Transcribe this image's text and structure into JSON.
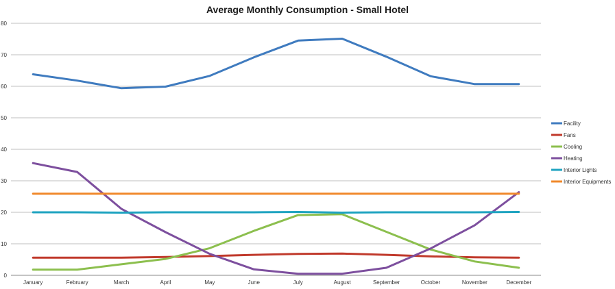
{
  "chart_data": {
    "type": "line",
    "title": "Average Monthly Consumption - Small Hotel",
    "xlabel": "",
    "ylabel": "",
    "ylim": [
      0,
      80
    ],
    "yticks": [
      "0",
      "10",
      "20",
      "30",
      "40",
      "50",
      "60",
      "70",
      "80"
    ],
    "grid": true,
    "legend_position": "right",
    "categories": [
      "January",
      "February",
      "March",
      "April",
      "May",
      "June",
      "July",
      "August",
      "September",
      "October",
      "November",
      "December"
    ],
    "series": [
      {
        "name": "Facility",
        "color": "#3f7bbf",
        "values": [
          63.8,
          61.8,
          59.4,
          59.9,
          63.3,
          69.2,
          74.5,
          75.1,
          69.4,
          63.2,
          60.7,
          60.7
        ]
      },
      {
        "name": "Fans",
        "color": "#c0392b",
        "values": [
          5.6,
          5.6,
          5.6,
          5.8,
          6.1,
          6.5,
          6.8,
          6.9,
          6.5,
          6.0,
          5.7,
          5.6
        ]
      },
      {
        "name": "Cooling",
        "color": "#8cbf4e",
        "values": [
          1.8,
          1.8,
          3.5,
          5.2,
          8.6,
          14.1,
          19.1,
          19.4,
          13.8,
          8.2,
          4.4,
          2.4
        ]
      },
      {
        "name": "Heating",
        "color": "#7d4f9e",
        "values": [
          35.6,
          32.8,
          21.1,
          13.7,
          6.8,
          1.9,
          0.5,
          0.5,
          2.4,
          8.5,
          15.9,
          26.4
        ]
      },
      {
        "name": "Interior Lights",
        "color": "#1ea3c0",
        "values": [
          20.0,
          20.0,
          19.9,
          20.0,
          20.0,
          20.0,
          20.1,
          19.9,
          20.0,
          20.0,
          20.0,
          20.1
        ]
      },
      {
        "name": "Interior Equipments",
        "color": "#f0882a",
        "values": [
          25.9,
          25.9,
          25.9,
          25.9,
          25.9,
          25.9,
          25.9,
          25.9,
          25.9,
          25.9,
          25.9,
          25.9
        ]
      }
    ]
  }
}
